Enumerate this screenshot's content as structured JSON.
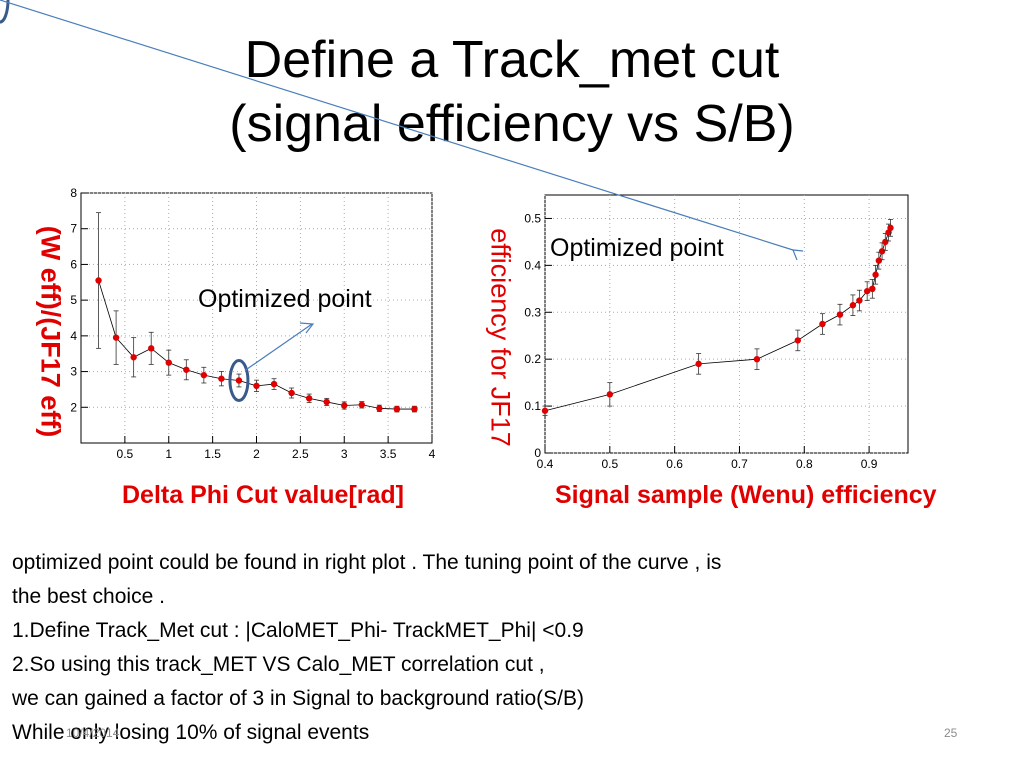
{
  "slide": {
    "title_line1": "Define a  Track_met cut",
    "title_line2": "(signal efficiency vs S/B)",
    "footer_date": "10/4/2014",
    "page_number": "25"
  },
  "colors": {
    "marker": "#e00000",
    "label_red": "#e00000",
    "annotation_arrow": "#4a7ebb",
    "highlight_ellipse": "#3a5a8c"
  },
  "body": {
    "lines": [
      " optimized point could be found in right plot . The tuning point of the curve , is",
      "the best choice .",
      "1.Define Track_Met cut : |CaloMET_Phi- TrackMET_Phi| <0.9",
      "2.So using this track_MET VS Calo_MET correlation cut ,",
      "we can gained a factor of 3 in Signal to background ratio(S/B)",
      "While only losing 10% of signal events"
    ]
  },
  "chart_data": [
    {
      "type": "line",
      "xlabel": "Delta Phi Cut value[rad]",
      "ylabel": "(W eff)/(JF17 eff)",
      "annotation": "Optimized point",
      "highlight_x": 1.8,
      "xlim": [
        0,
        4
      ],
      "ylim": [
        1,
        8
      ],
      "xticks": [
        "0.5",
        "1",
        "1.5",
        "2",
        "2.5",
        "3",
        "3.5",
        "4"
      ],
      "yticks": [
        "2",
        "3",
        "4",
        "5",
        "6",
        "7",
        "8"
      ],
      "x": [
        0.2,
        0.4,
        0.6,
        0.8,
        1.0,
        1.2,
        1.4,
        1.6,
        1.8,
        2.0,
        2.2,
        2.4,
        2.6,
        2.8,
        3.0,
        3.2,
        3.4,
        3.6,
        3.8
      ],
      "y": [
        5.55,
        3.95,
        3.4,
        3.65,
        3.25,
        3.05,
        2.9,
        2.8,
        2.75,
        2.6,
        2.65,
        2.4,
        2.25,
        2.15,
        2.05,
        2.07,
        1.97,
        1.95,
        1.95
      ],
      "yerr": [
        1.9,
        0.75,
        0.55,
        0.45,
        0.35,
        0.28,
        0.22,
        0.2,
        0.18,
        0.16,
        0.15,
        0.14,
        0.12,
        0.1,
        0.1,
        0.09,
        0.09,
        0.08,
        0.08
      ]
    },
    {
      "type": "line",
      "xlabel": "Signal sample (Wenu) efficiency",
      "ylabel": "efficiency for JF17",
      "annotation": "Optimized point",
      "highlight_x": 0.895,
      "xlim": [
        0.4,
        0.96
      ],
      "ylim": [
        0,
        0.55
      ],
      "xticks": [
        "0.4",
        "0.5",
        "0.6",
        "0.7",
        "0.8",
        "0.9"
      ],
      "yticks": [
        "0",
        "0.1",
        "0.2",
        "0.3",
        "0.4",
        "0.5"
      ],
      "x": [
        0.4,
        0.5,
        0.637,
        0.727,
        0.79,
        0.828,
        0.855,
        0.875,
        0.885,
        0.897,
        0.905,
        0.91,
        0.915,
        0.92,
        0.925,
        0.93,
        0.933
      ],
      "y": [
        0.09,
        0.125,
        0.19,
        0.2,
        0.24,
        0.275,
        0.295,
        0.315,
        0.325,
        0.345,
        0.35,
        0.38,
        0.41,
        0.43,
        0.45,
        0.47,
        0.48
      ],
      "yerr": [
        0.01,
        0.025,
        0.022,
        0.022,
        0.022,
        0.022,
        0.022,
        0.022,
        0.022,
        0.02,
        0.02,
        0.02,
        0.018,
        0.018,
        0.018,
        0.018,
        0.018
      ]
    }
  ]
}
